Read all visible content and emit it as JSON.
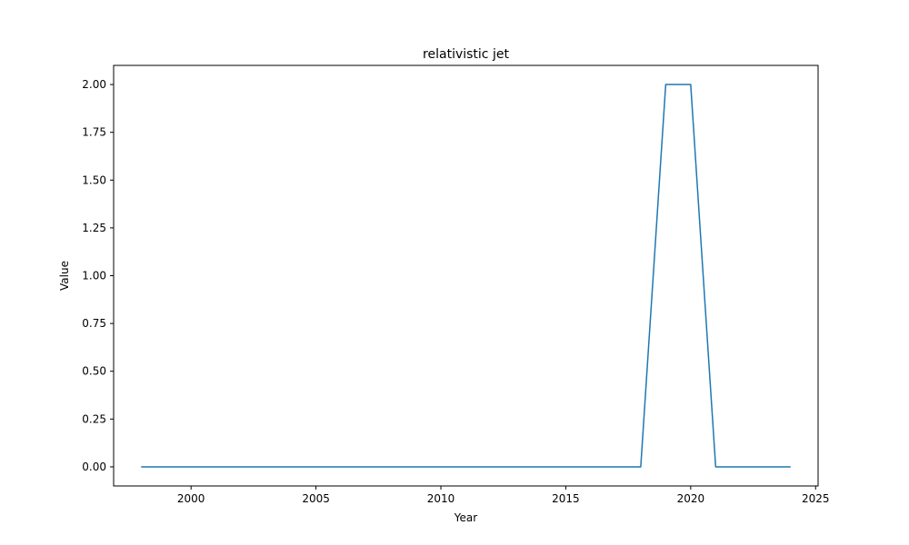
{
  "chart_data": {
    "type": "line",
    "title": "relativistic jet",
    "xlabel": "Year",
    "ylabel": "Value",
    "xlim": [
      1996.9,
      2025.1
    ],
    "ylim": [
      -0.1,
      2.1
    ],
    "x_ticks": [
      2000,
      2005,
      2010,
      2015,
      2020,
      2025
    ],
    "y_ticks": [
      0.0,
      0.25,
      0.5,
      0.75,
      1.0,
      1.25,
      1.5,
      1.75,
      2.0
    ],
    "grid": false,
    "series": [
      {
        "color": "#1f77b4",
        "x": [
          1998,
          1999,
          2000,
          2001,
          2002,
          2003,
          2004,
          2005,
          2006,
          2007,
          2008,
          2009,
          2010,
          2011,
          2012,
          2013,
          2014,
          2015,
          2016,
          2017,
          2018,
          2019,
          2020,
          2021,
          2022,
          2023,
          2024
        ],
        "y": [
          0,
          0,
          0,
          0,
          0,
          0,
          0,
          0,
          0,
          0,
          0,
          0,
          0,
          0,
          0,
          0,
          0,
          0,
          0,
          0,
          0,
          2,
          2,
          0,
          0,
          0,
          0
        ]
      }
    ]
  }
}
